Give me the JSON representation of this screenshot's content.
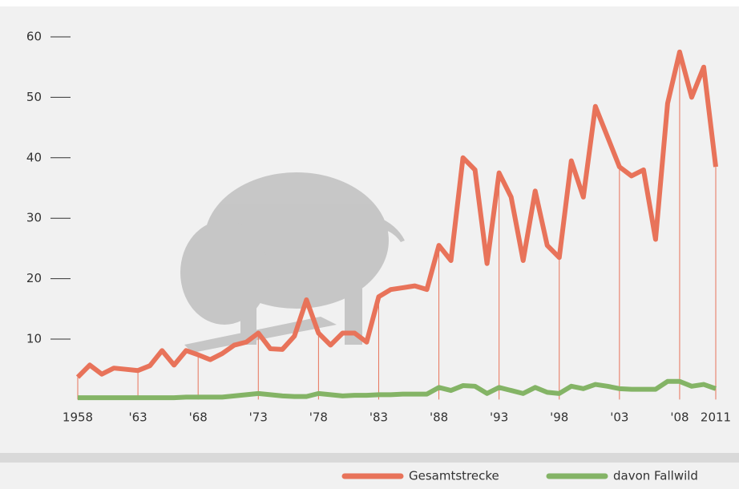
{
  "chart_data": {
    "type": "line",
    "x": [
      1958,
      1959,
      1960,
      1961,
      1962,
      1963,
      1964,
      1965,
      1966,
      1967,
      1968,
      1969,
      1970,
      1971,
      1972,
      1973,
      1974,
      1975,
      1976,
      1977,
      1978,
      1979,
      1980,
      1981,
      1982,
      1983,
      1984,
      1985,
      1986,
      1987,
      1988,
      1989,
      1990,
      1991,
      1992,
      1993,
      1994,
      1995,
      1996,
      1997,
      1998,
      1999,
      2000,
      2001,
      2002,
      2003,
      2004,
      2005,
      2006,
      2007,
      2008,
      2009,
      2010,
      2011
    ],
    "series": [
      {
        "name": "Gesamtstrecke",
        "color": "#e8735a",
        "values": [
          3.7,
          5.7,
          4.2,
          5.2,
          5.0,
          4.8,
          5.6,
          8.1,
          5.7,
          8.1,
          7.4,
          6.6,
          7.6,
          9.0,
          9.5,
          11.0,
          8.4,
          8.3,
          10.5,
          16.5,
          11.0,
          9.0,
          11.0,
          11.0,
          9.5,
          17.0,
          18.2,
          18.5,
          18.8,
          18.2,
          25.5,
          23.0,
          40.0,
          38.0,
          22.5,
          37.5,
          33.5,
          23.0,
          34.5,
          25.5,
          23.5,
          39.5,
          33.5,
          48.5,
          43.5,
          38.5,
          37.0,
          38.0,
          26.5,
          49.0,
          57.5,
          50.0,
          55.0,
          38.5
        ]
      },
      {
        "name": "davon Fallwild",
        "color": "#84b466",
        "values": [
          0.3,
          0.3,
          0.3,
          0.3,
          0.3,
          0.3,
          0.3,
          0.3,
          0.3,
          0.4,
          0.4,
          0.4,
          0.4,
          0.6,
          0.8,
          1.0,
          0.8,
          0.6,
          0.5,
          0.5,
          1.0,
          0.8,
          0.6,
          0.7,
          0.7,
          0.8,
          0.8,
          0.9,
          0.9,
          0.9,
          2.0,
          1.5,
          2.3,
          2.2,
          1.0,
          2.0,
          1.5,
          1.0,
          2.0,
          1.2,
          1.0,
          2.2,
          1.8,
          2.5,
          2.2,
          1.8,
          1.7,
          1.7,
          1.7,
          3.0,
          3.0,
          2.2,
          2.5,
          1.8
        ]
      }
    ],
    "xlim": [
      1958,
      2011
    ],
    "xticks": [
      1958,
      {
        "value": 1963,
        "label": "'63"
      },
      {
        "value": 1968,
        "label": "'68"
      },
      {
        "value": 1973,
        "label": "'73"
      },
      {
        "value": 1978,
        "label": "'78"
      },
      {
        "value": 1983,
        "label": "'83"
      },
      {
        "value": 1988,
        "label": "'88"
      },
      {
        "value": 1993,
        "label": "'93"
      },
      {
        "value": 1998,
        "label": "'98"
      },
      {
        "value": 2003,
        "label": "'03"
      },
      {
        "value": 2008,
        "label": "'08"
      },
      2011
    ],
    "ylim": [
      0,
      60
    ],
    "yticks": [
      10,
      20,
      30,
      40,
      50,
      60
    ],
    "legend": "bottom-right"
  }
}
